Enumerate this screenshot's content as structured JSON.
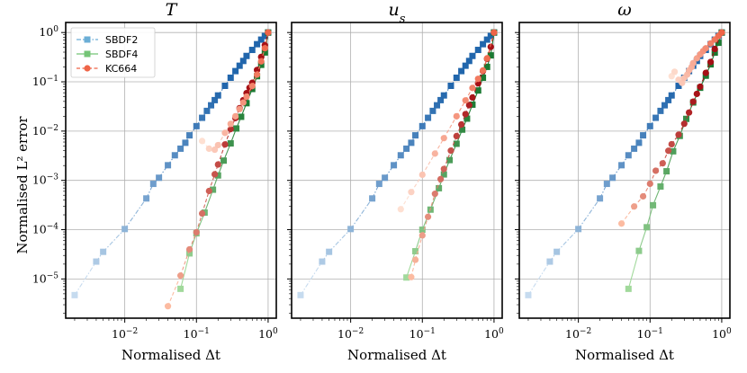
{
  "chart_data": {
    "type": "line",
    "xscale": "log",
    "yscale": "log",
    "xlim": [
      0.0015,
      1.3
    ],
    "ylim": [
      1.6e-06,
      1.6
    ],
    "xticks": [
      0.01,
      0.1,
      1
    ],
    "xtick_labels": [
      "10^-2",
      "10^-1",
      "10^0"
    ],
    "yticks": [
      1e-05,
      0.0001,
      0.001,
      0.01,
      0.1,
      1
    ],
    "ytick_labels": [
      "10^-5",
      "10^-4",
      "10^-3",
      "10^-2",
      "10^-1",
      "10^0"
    ],
    "xlabel": "Normalised Δt",
    "ylabel": "Normalised L² error",
    "grid": true,
    "legend": {
      "placement": "top-left",
      "entries": [
        "SBDF2",
        "SBDF4",
        "KC664"
      ]
    },
    "series_colors": {
      "SBDF2": {
        "light": "#c6dbef",
        "dark": "#2166ac",
        "legend": "#6baed6"
      },
      "SBDF4": {
        "light": "#a1d99b",
        "dark": "#1b7a32",
        "legend": "#74c476"
      },
      "KC664": {
        "light": "#fcbba1",
        "dark": "#a50f15",
        "legend": "#ef6548"
      }
    },
    "panels": [
      {
        "title": "T",
        "series": [
          {
            "name": "SBDF2",
            "marker": "square",
            "linestyle": "dashdot",
            "x": [
              0.002,
              0.004,
              0.005,
              0.01,
              0.02,
              0.025,
              0.03,
              0.04,
              0.05,
              0.06,
              0.07,
              0.08,
              0.1,
              0.12,
              0.14,
              0.16,
              0.18,
              0.2,
              0.25,
              0.3,
              0.35,
              0.4,
              0.45,
              0.5,
              0.6,
              0.7,
              0.8,
              0.9,
              1.0
            ],
            "y": [
              4.7e-06,
              2.25e-05,
              3.55e-05,
              0.000103,
              0.00043,
              0.00085,
              0.00113,
              0.00203,
              0.00323,
              0.0044,
              0.00579,
              0.0082,
              0.0126,
              0.0186,
              0.0257,
              0.0334,
              0.0425,
              0.0529,
              0.0829,
              0.121,
              0.165,
              0.212,
              0.265,
              0.335,
              0.444,
              0.58,
              0.718,
              0.85,
              1.0
            ]
          },
          {
            "name": "SBDF4",
            "marker": "square",
            "linestyle": "solid",
            "x": [
              0.06,
              0.08,
              0.1,
              0.13,
              0.17,
              0.2,
              0.24,
              0.3,
              0.36,
              0.42,
              0.5,
              0.6,
              0.7,
              0.8,
              0.9,
              1.0
            ],
            "y": [
              6.3e-06,
              3.3e-05,
              8.43e-05,
              0.000222,
              0.000647,
              0.00126,
              0.00252,
              0.00563,
              0.0113,
              0.0195,
              0.0368,
              0.0715,
              0.13,
              0.221,
              0.394,
              1.0
            ]
          },
          {
            "name": "KC664",
            "marker": "circle",
            "linestyle": "dashed",
            "x": [
              0.04,
              0.06,
              0.08,
              0.1,
              0.12,
              0.15,
              0.18,
              0.2,
              0.25,
              0.3,
              0.35,
              0.4,
              0.45,
              0.5,
              0.55,
              0.6,
              0.7,
              0.8,
              0.9,
              1.0
            ],
            "y": [
              2.8e-06,
              1.17e-05,
              3.98e-05,
              8.85e-05,
              0.000213,
              0.000609,
              0.00133,
              0.0021,
              0.00535,
              0.011,
              0.0184,
              0.0292,
              0.0424,
              0.059,
              0.0758,
              0.0955,
              0.174,
              0.32,
              0.554,
              1.0
            ]
          },
          {
            "name": "KC664",
            "marker": "circle",
            "linestyle": "dashed",
            "x": [
              0.12,
              0.15,
              0.18,
              0.2,
              0.25,
              0.3,
              0.35,
              0.4,
              0.45,
              0.5,
              0.6,
              0.7,
              0.8,
              0.9,
              1.0
            ],
            "y": [
              0.0063,
              0.0044,
              0.0042,
              0.0052,
              0.0092,
              0.014,
              0.02,
              0.028,
              0.038,
              0.05,
              0.082,
              0.14,
              0.26,
              0.48,
              1.0
            ]
          }
        ]
      },
      {
        "title": "u_s",
        "series": [
          {
            "name": "SBDF2",
            "marker": "square",
            "linestyle": "dashdot",
            "x": [
              0.002,
              0.004,
              0.005,
              0.01,
              0.02,
              0.025,
              0.03,
              0.04,
              0.05,
              0.06,
              0.07,
              0.08,
              0.1,
              0.12,
              0.14,
              0.16,
              0.18,
              0.2,
              0.25,
              0.3,
              0.35,
              0.4,
              0.45,
              0.5,
              0.6,
              0.7,
              0.8,
              0.9,
              1.0
            ],
            "y": [
              4.7e-06,
              2.25e-05,
              3.55e-05,
              0.000103,
              0.00043,
              0.00085,
              0.00113,
              0.00203,
              0.00323,
              0.0044,
              0.00579,
              0.0082,
              0.0126,
              0.0186,
              0.0257,
              0.0334,
              0.0425,
              0.0529,
              0.0829,
              0.121,
              0.165,
              0.212,
              0.265,
              0.335,
              0.444,
              0.58,
              0.718,
              0.85,
              1.0
            ]
          },
          {
            "name": "SBDF4",
            "marker": "square",
            "linestyle": "solid",
            "x": [
              0.06,
              0.08,
              0.1,
              0.13,
              0.17,
              0.2,
              0.24,
              0.3,
              0.36,
              0.42,
              0.5,
              0.6,
              0.7,
              0.8,
              0.9,
              1.0
            ],
            "y": [
              1.07e-05,
              3.65e-05,
              9.98e-05,
              0.000255,
              0.000693,
              0.00132,
              0.00258,
              0.00553,
              0.0107,
              0.0179,
              0.0344,
              0.0667,
              0.121,
              0.201,
              0.344,
              1.0
            ]
          },
          {
            "name": "KC664",
            "marker": "circle",
            "linestyle": "dashed",
            "x": [
              0.07,
              0.08,
              0.1,
              0.12,
              0.15,
              0.18,
              0.2,
              0.25,
              0.3,
              0.35,
              0.4,
              0.45,
              0.5,
              0.6,
              0.7,
              0.8,
              0.9,
              1.0
            ],
            "y": [
              1.09e-05,
              2.45e-05,
              7.65e-05,
              0.000182,
              0.000534,
              0.00106,
              0.00171,
              0.00401,
              0.00793,
              0.0136,
              0.0221,
              0.0336,
              0.048,
              0.0932,
              0.165,
              0.293,
              0.511,
              1.0
            ]
          },
          {
            "name": "KC664",
            "marker": "circle",
            "linestyle": "dashed",
            "x": [
              0.05,
              0.07,
              0.1,
              0.15,
              0.2,
              0.3,
              0.4,
              0.5,
              0.6,
              0.7,
              0.8,
              1.0
            ],
            "y": [
              0.00026,
              0.00058,
              0.0013,
              0.0035,
              0.0072,
              0.02,
              0.042,
              0.075,
              0.115,
              0.17,
              0.3,
              1.0
            ]
          }
        ]
      },
      {
        "title": "ω",
        "series": [
          {
            "name": "SBDF2",
            "marker": "square",
            "linestyle": "dashdot",
            "x": [
              0.002,
              0.004,
              0.005,
              0.01,
              0.02,
              0.025,
              0.03,
              0.04,
              0.05,
              0.06,
              0.07,
              0.08,
              0.1,
              0.12,
              0.14,
              0.16,
              0.18,
              0.2,
              0.25,
              0.3,
              0.35,
              0.4,
              0.45,
              0.5,
              0.6,
              0.7,
              0.8,
              0.9,
              1.0
            ],
            "y": [
              4.7e-06,
              2.25e-05,
              3.55e-05,
              0.000103,
              0.00043,
              0.00085,
              0.00113,
              0.00203,
              0.00323,
              0.0044,
              0.00579,
              0.0082,
              0.0126,
              0.0186,
              0.0257,
              0.0334,
              0.0425,
              0.0529,
              0.0829,
              0.121,
              0.165,
              0.212,
              0.265,
              0.335,
              0.444,
              0.58,
              0.718,
              0.85,
              1.0
            ]
          },
          {
            "name": "SBDF4",
            "marker": "square",
            "linestyle": "solid",
            "x": [
              0.05,
              0.07,
              0.09,
              0.11,
              0.14,
              0.17,
              0.21,
              0.26,
              0.32,
              0.4,
              0.5,
              0.6,
              0.7,
              0.8,
              0.9,
              1.0
            ],
            "y": [
              6.3e-06,
              3.71e-05,
              0.000112,
              0.000313,
              0.000751,
              0.00153,
              0.00389,
              0.00799,
              0.0177,
              0.0381,
              0.0757,
              0.133,
              0.226,
              0.391,
              0.62,
              1.0
            ]
          },
          {
            "name": "KC664",
            "marker": "circle",
            "linestyle": "dashed",
            "x": [
              0.04,
              0.06,
              0.08,
              0.1,
              0.12,
              0.15,
              0.18,
              0.2,
              0.25,
              0.3,
              0.35,
              0.4,
              0.45,
              0.5,
              0.6,
              0.7,
              0.8,
              1.0
            ],
            "y": [
              0.000133,
              0.000295,
              0.000475,
              0.000853,
              0.00157,
              0.00222,
              0.00399,
              0.00542,
              0.00845,
              0.0141,
              0.0238,
              0.0396,
              0.0569,
              0.0795,
              0.152,
              0.253,
              0.463,
              1.0
            ]
          },
          {
            "name": "KC664",
            "marker": "circle",
            "linestyle": "dashed",
            "x": [
              0.2,
              0.22,
              0.25,
              0.28,
              0.3,
              0.33,
              0.35,
              0.38,
              0.4,
              0.45,
              0.5,
              0.55,
              0.6,
              0.7,
              0.8,
              0.9,
              1.0
            ],
            "y": [
              0.13,
              0.16,
              0.11,
              0.095,
              0.12,
              0.14,
              0.17,
              0.2,
              0.24,
              0.3,
              0.36,
              0.42,
              0.48,
              0.6,
              0.72,
              0.85,
              1.0
            ]
          }
        ]
      }
    ]
  }
}
